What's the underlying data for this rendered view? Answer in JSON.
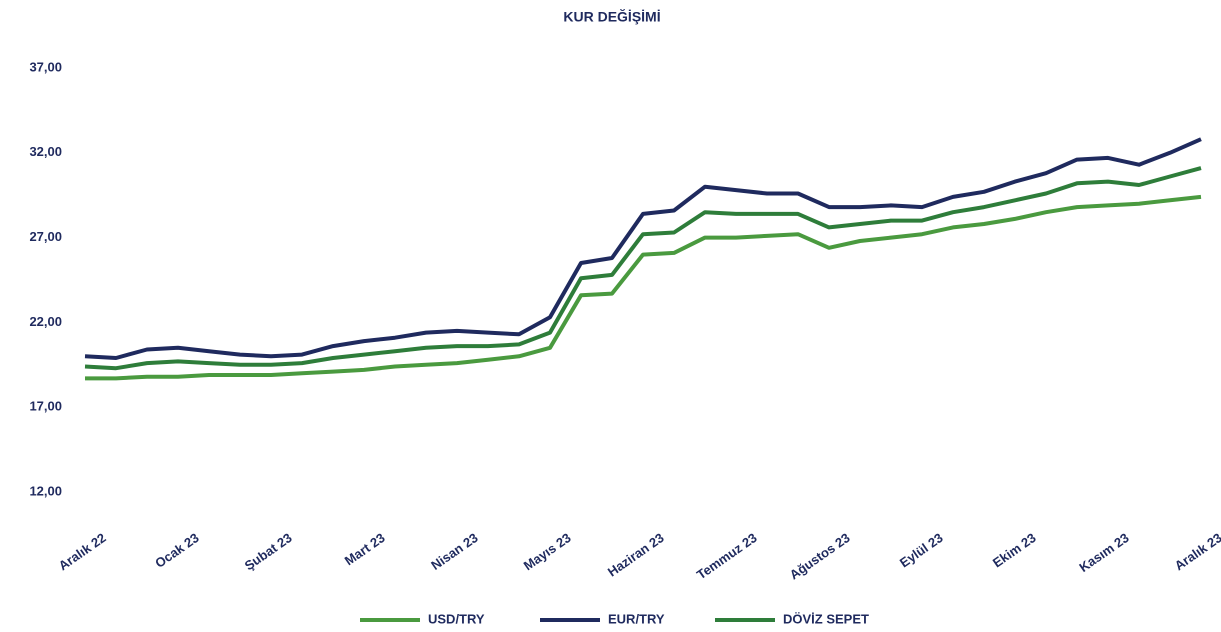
{
  "chart_data": {
    "type": "line",
    "title": "KUR DEĞİŞİMİ",
    "categories": [
      "Aralık 22",
      null,
      null,
      "Ocak 23",
      null,
      null,
      "Şubat 23",
      null,
      null,
      "Mart 23",
      null,
      null,
      "Nisan 23",
      null,
      null,
      "Mayıs 23",
      null,
      null,
      "Haziran 23",
      null,
      null,
      "Temmuz 23",
      null,
      null,
      "Ağustos 23",
      null,
      null,
      "Eylül 23",
      null,
      null,
      "Ekim 23",
      null,
      null,
      "Kasım 23",
      null,
      null,
      "Aralık 23"
    ],
    "series": [
      {
        "name": "USD/TRY",
        "color": "#4a9a3f",
        "values": [
          18.7,
          18.7,
          18.8,
          18.8,
          18.9,
          18.9,
          18.9,
          19.0,
          19.1,
          19.2,
          19.4,
          19.5,
          19.6,
          19.8,
          20.0,
          20.5,
          23.6,
          23.7,
          26.0,
          26.1,
          27.0,
          27.0,
          27.1,
          27.2,
          26.4,
          26.8,
          27.0,
          27.2,
          27.6,
          27.8,
          28.1,
          28.5,
          28.8,
          28.9,
          29.0,
          29.2,
          29.4
        ]
      },
      {
        "name": "EUR/TRY",
        "color": "#1f2a5e",
        "values": [
          20.0,
          19.9,
          20.4,
          20.5,
          20.3,
          20.1,
          20.0,
          20.1,
          20.6,
          20.9,
          21.1,
          21.4,
          21.5,
          21.4,
          21.3,
          22.3,
          25.5,
          25.8,
          28.4,
          28.6,
          30.0,
          29.8,
          29.6,
          29.6,
          28.8,
          28.8,
          28.9,
          28.8,
          29.4,
          29.7,
          30.3,
          30.8,
          31.6,
          31.7,
          31.3,
          32.0,
          32.8
        ]
      },
      {
        "name": "DÖVİZ SEPET",
        "color": "#2e7d3a",
        "values": [
          19.4,
          19.3,
          19.6,
          19.7,
          19.6,
          19.5,
          19.5,
          19.6,
          19.9,
          20.1,
          20.3,
          20.5,
          20.6,
          20.6,
          20.7,
          21.4,
          24.6,
          24.8,
          27.2,
          27.3,
          28.5,
          28.4,
          28.4,
          28.4,
          27.6,
          27.8,
          28.0,
          28.0,
          28.5,
          28.8,
          29.2,
          29.6,
          30.2,
          30.3,
          30.1,
          30.6,
          31.1
        ]
      }
    ],
    "ylim": [
      12,
      37
    ],
    "yticks": [
      {
        "value": 12,
        "label": "12,00"
      },
      {
        "value": 17,
        "label": "17,00"
      },
      {
        "value": 22,
        "label": "22,00"
      },
      {
        "value": 27,
        "label": "27,00"
      },
      {
        "value": 32,
        "label": "32,00"
      },
      {
        "value": 37,
        "label": "37,00"
      }
    ],
    "legend": "bottom"
  }
}
